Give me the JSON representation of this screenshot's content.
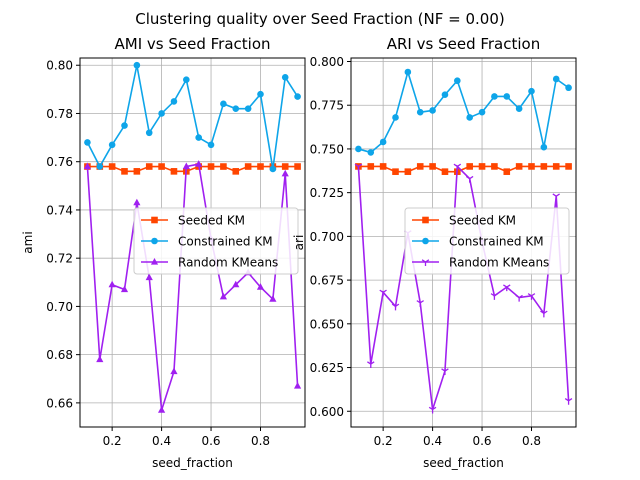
{
  "figure_title": "Clustering quality over Seed Fraction (NF = 0.00)",
  "colors": {
    "seeded": "#ff4500",
    "constrained": "#0ea5e9",
    "random": "#a020f0",
    "grid": "#b0b0b0",
    "axis": "#000000"
  },
  "chart_data": [
    {
      "type": "line",
      "title": "AMI vs Seed Fraction",
      "xlabel": "seed_fraction",
      "ylabel": "ami",
      "xlim": [
        0.07,
        0.98
      ],
      "ylim": [
        0.65,
        0.803
      ],
      "x_ticks": [
        0.2,
        0.4,
        0.6,
        0.8
      ],
      "y_ticks": [
        0.66,
        0.68,
        0.7,
        0.72,
        0.74,
        0.76,
        0.78,
        0.8
      ],
      "grid": true,
      "legend_position": "center-right",
      "x": [
        0.1,
        0.15,
        0.2,
        0.25,
        0.3,
        0.35,
        0.4,
        0.45,
        0.5,
        0.55,
        0.6,
        0.65,
        0.7,
        0.75,
        0.8,
        0.85,
        0.9,
        0.95
      ],
      "series": [
        {
          "name": "Seeded KM",
          "marker": "square",
          "values": [
            0.758,
            0.758,
            0.758,
            0.756,
            0.756,
            0.758,
            0.758,
            0.756,
            0.756,
            0.758,
            0.758,
            0.758,
            0.756,
            0.758,
            0.758,
            0.758,
            0.758,
            0.758
          ]
        },
        {
          "name": "Constrained KM",
          "marker": "circle",
          "values": [
            0.768,
            0.758,
            0.767,
            0.775,
            0.8,
            0.772,
            0.78,
            0.785,
            0.794,
            0.77,
            0.767,
            0.784,
            0.782,
            0.782,
            0.788,
            0.757,
            0.795,
            0.787
          ]
        },
        {
          "name": "Random KMeans",
          "marker": "triangle",
          "values": [
            0.758,
            0.678,
            0.709,
            0.707,
            0.743,
            0.712,
            0.657,
            0.673,
            0.758,
            0.759,
            0.728,
            0.704,
            0.709,
            0.714,
            0.708,
            0.703,
            0.755,
            0.667
          ]
        }
      ]
    },
    {
      "type": "line",
      "title": "ARI vs Seed Fraction",
      "xlabel": "seed_fraction",
      "ylabel": "ari",
      "xlim": [
        0.07,
        0.98
      ],
      "ylim": [
        0.591,
        0.802
      ],
      "x_ticks": [
        0.2,
        0.4,
        0.6,
        0.8
      ],
      "y_ticks": [
        0.6,
        0.625,
        0.65,
        0.675,
        0.7,
        0.725,
        0.75,
        0.775,
        0.8
      ],
      "grid": true,
      "legend_position": "center-right",
      "x": [
        0.1,
        0.15,
        0.2,
        0.25,
        0.3,
        0.35,
        0.4,
        0.45,
        0.5,
        0.55,
        0.6,
        0.65,
        0.7,
        0.75,
        0.8,
        0.85,
        0.9,
        0.95
      ],
      "series": [
        {
          "name": "Seeded KM",
          "marker": "square",
          "values": [
            0.74,
            0.74,
            0.74,
            0.737,
            0.737,
            0.74,
            0.74,
            0.737,
            0.737,
            0.74,
            0.74,
            0.74,
            0.737,
            0.74,
            0.74,
            0.74,
            0.74,
            0.74
          ]
        },
        {
          "name": "Constrained KM",
          "marker": "circle",
          "values": [
            0.75,
            0.748,
            0.754,
            0.768,
            0.794,
            0.771,
            0.772,
            0.781,
            0.789,
            0.768,
            0.771,
            0.78,
            0.78,
            0.773,
            0.783,
            0.751,
            0.79,
            0.785
          ]
        },
        {
          "name": "Random KMeans",
          "marker": "tri_down",
          "values": [
            0.74,
            0.627,
            0.668,
            0.66,
            0.702,
            0.662,
            0.601,
            0.623,
            0.74,
            0.733,
            0.697,
            0.666,
            0.671,
            0.665,
            0.666,
            0.656,
            0.723,
            0.606
          ]
        }
      ]
    }
  ]
}
